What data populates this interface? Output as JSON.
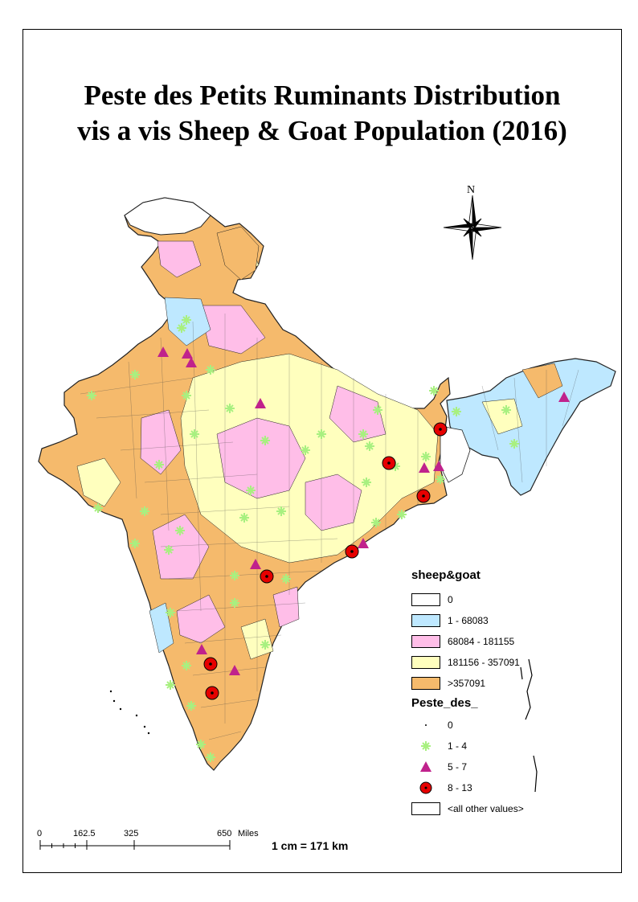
{
  "title": {
    "line1": "Peste des Petits Ruminants Distribution",
    "line2": "vis a vis Sheep & Goat Population (2016)"
  },
  "north_arrow": {
    "label": "N"
  },
  "legend": {
    "sheep_goat": {
      "title": "sheep&goat",
      "classes": [
        {
          "label": "0",
          "color": "#ffffff"
        },
        {
          "label": "1 - 68083",
          "color": "#bee8ff"
        },
        {
          "label": "68084 - 181155",
          "color": "#ffbee8"
        },
        {
          "label": "181156 - 357091",
          "color": "#ffffbe"
        },
        {
          "label": ">357091",
          "color": "#f5ba6c"
        }
      ]
    },
    "ppr": {
      "title": "Peste_des_",
      "classes": [
        {
          "label": "0",
          "symbol": "dot"
        },
        {
          "label": "1 - 4",
          "symbol": "asterisk",
          "color": "#a8f080"
        },
        {
          "label": "5 - 7",
          "symbol": "triangle",
          "color": "#c0228c"
        },
        {
          "label": "8 - 13",
          "symbol": "circle",
          "color": "#e60000"
        },
        {
          "label": "<all other values>",
          "symbol": "box"
        }
      ]
    }
  },
  "scale_bar": {
    "ticks": [
      "0",
      "162.5",
      "325",
      "650"
    ],
    "unit": "Miles",
    "ratio_text": "1 cm = 171 km"
  }
}
